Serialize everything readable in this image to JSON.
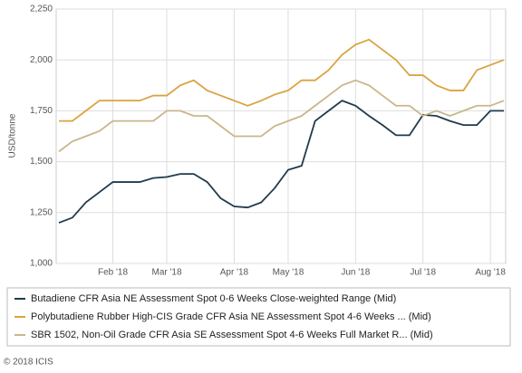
{
  "chart_data": {
    "type": "line",
    "y_label": "USD/tonne",
    "footer": "© 2018 ICIS",
    "categories": [
      null,
      null,
      null,
      null,
      "Feb '18",
      null,
      null,
      null,
      "Mar '18",
      null,
      null,
      null,
      null,
      "Apr '18",
      null,
      null,
      null,
      "May '18",
      null,
      null,
      null,
      null,
      "Jun '18",
      null,
      null,
      null,
      null,
      "Jul '18",
      null,
      null,
      null,
      null,
      "Aug '18",
      null
    ],
    "ylim": [
      1000,
      2250
    ],
    "yticks": [
      {
        "value": 1000,
        "label": "1,000"
      },
      {
        "value": 1250,
        "label": "1,250"
      },
      {
        "value": 1500,
        "label": "1,500"
      },
      {
        "value": 1750,
        "label": "1,750"
      },
      {
        "value": 2000,
        "label": "2,000"
      },
      {
        "value": 2250,
        "label": "2,250"
      }
    ],
    "grid": true,
    "series": [
      {
        "name": "Butadiene CFR Asia NE Assessment Spot 0-6 Weeks Close-weighted Range (Mid)",
        "color": "#1f3b4d",
        "values": [
          1200,
          1225,
          1300,
          1350,
          1400,
          1400,
          1400,
          1420,
          1425,
          1440,
          1440,
          1400,
          1320,
          1280,
          1275,
          1300,
          1370,
          1460,
          1480,
          1700,
          1750,
          1800,
          1775,
          1725,
          1680,
          1630,
          1630,
          1730,
          1725,
          1700,
          1680,
          1680,
          1750,
          1750
        ]
      },
      {
        "name": "Polybutadiene Rubber High-CIS Grade CFR Asia NE Assessment Spot 4-6 Weeks ... (Mid)",
        "color": "#d9a441",
        "values": [
          1700,
          1700,
          1750,
          1800,
          1800,
          1800,
          1800,
          1825,
          1825,
          1875,
          1900,
          1850,
          1825,
          1800,
          1775,
          1800,
          1830,
          1850,
          1900,
          1900,
          1950,
          2025,
          2075,
          2100,
          2050,
          2000,
          1925,
          1925,
          1875,
          1850,
          1850,
          1950,
          1975,
          2000
        ]
      },
      {
        "name": "SBR 1502, Non-Oil Grade CFR Asia SE Assessment Spot 4-6 Weeks Full Market R... (Mid)",
        "color": "#c8b78a",
        "values": [
          1550,
          1600,
          1625,
          1650,
          1700,
          1700,
          1700,
          1700,
          1750,
          1750,
          1725,
          1725,
          1675,
          1625,
          1625,
          1625,
          1675,
          1700,
          1725,
          1775,
          1825,
          1875,
          1900,
          1875,
          1825,
          1775,
          1775,
          1725,
          1750,
          1725,
          1750,
          1775,
          1775,
          1800
        ]
      }
    ]
  }
}
